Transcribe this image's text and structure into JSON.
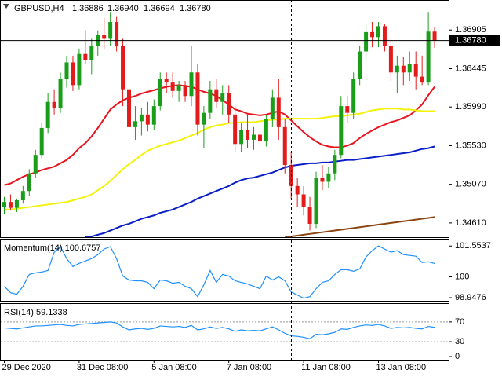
{
  "chart_data": [
    {
      "type": "candlestick",
      "title": "GBPUSD,H4",
      "ohlc_labels": [
        "1.36886",
        "1.36940",
        "1.36694",
        "1.36780"
      ],
      "categories": [
        "29 Dec 2020",
        null,
        null,
        null,
        null,
        null,
        null,
        null,
        null,
        null,
        null,
        null,
        "31 Dec 08:00",
        null,
        null,
        null,
        null,
        null,
        null,
        null,
        null,
        null,
        null,
        null,
        "5 Jan 08:00",
        null,
        null,
        null,
        null,
        null,
        null,
        null,
        null,
        null,
        null,
        null,
        "7 Jan 08:00",
        null,
        null,
        null,
        null,
        null,
        null,
        null,
        null,
        null,
        null,
        null,
        "11 Jan 08:00",
        null,
        null,
        null,
        null,
        null,
        null,
        null,
        null,
        null,
        null,
        null,
        "13 Jan 08:00",
        null,
        null,
        null,
        null,
        null,
        null,
        null,
        null,
        null
      ],
      "open": [
        1.348,
        1.3486,
        1.3479,
        1.3488,
        1.3499,
        1.352,
        1.3542,
        1.3574,
        1.3605,
        1.3598,
        1.3632,
        1.3652,
        1.3625,
        1.3662,
        1.3655,
        1.3672,
        1.3685,
        1.368,
        1.37,
        1.3672,
        1.362,
        1.3575,
        1.3582,
        1.359,
        1.3578,
        1.36,
        1.3632,
        1.3628,
        1.3618,
        1.3625,
        1.3612,
        1.364,
        1.3578,
        1.3592,
        1.362,
        1.3605,
        1.3615,
        1.359,
        1.3555,
        1.3572,
        1.356,
        1.3566,
        1.3558,
        1.3585,
        1.361,
        1.3575,
        1.353,
        1.3505,
        1.3495,
        1.348,
        1.346,
        1.3515,
        1.351,
        1.352,
        1.3542,
        1.36,
        1.3592,
        1.3632,
        1.3665,
        1.3688,
        1.3682,
        1.3695,
        1.3672,
        1.364,
        1.3648,
        1.364,
        1.365,
        1.3635,
        1.3628,
        1.36886
      ],
      "high": [
        1.3492,
        1.3495,
        1.349,
        1.3505,
        1.3525,
        1.3548,
        1.358,
        1.3615,
        1.362,
        1.364,
        1.366,
        1.366,
        1.3668,
        1.369,
        1.368,
        1.369,
        1.3705,
        1.3712,
        1.3706,
        1.368,
        1.363,
        1.36,
        1.3598,
        1.3605,
        1.3608,
        1.364,
        1.364,
        1.364,
        1.363,
        1.363,
        1.3672,
        1.365,
        1.36,
        1.363,
        1.3632,
        1.3625,
        1.3625,
        1.36,
        1.358,
        1.359,
        1.3575,
        1.3578,
        1.359,
        1.362,
        1.3632,
        1.3585,
        1.3545,
        1.3515,
        1.3505,
        1.3492,
        1.3522,
        1.353,
        1.3528,
        1.3548,
        1.3612,
        1.3612,
        1.364,
        1.3672,
        1.3698,
        1.37,
        1.37,
        1.3698,
        1.368,
        1.366,
        1.3658,
        1.3665,
        1.3665,
        1.366,
        1.3712,
        1.3694
      ],
      "low": [
        1.3472,
        1.3476,
        1.3474,
        1.3484,
        1.3493,
        1.3515,
        1.3538,
        1.3568,
        1.359,
        1.3592,
        1.3622,
        1.3618,
        1.362,
        1.365,
        1.3638,
        1.366,
        1.3668,
        1.3672,
        1.3665,
        1.36,
        1.3545,
        1.356,
        1.3565,
        1.357,
        1.3572,
        1.3595,
        1.3615,
        1.361,
        1.3605,
        1.3605,
        1.36,
        1.3565,
        1.355,
        1.3585,
        1.3598,
        1.359,
        1.358,
        1.3545,
        1.3545,
        1.355,
        1.3548,
        1.3552,
        1.3552,
        1.3575,
        1.356,
        1.352,
        1.349,
        1.348,
        1.347,
        1.3452,
        1.3455,
        1.35,
        1.3502,
        1.3512,
        1.3538,
        1.358,
        1.3585,
        1.3625,
        1.3655,
        1.367,
        1.367,
        1.3665,
        1.363,
        1.3615,
        1.3625,
        1.363,
        1.362,
        1.3625,
        1.3625,
        1.36694
      ],
      "close": [
        1.3486,
        1.3479,
        1.3488,
        1.3499,
        1.352,
        1.3542,
        1.3574,
        1.3605,
        1.3598,
        1.3632,
        1.3652,
        1.3625,
        1.3662,
        1.3655,
        1.3672,
        1.3685,
        1.368,
        1.37,
        1.3672,
        1.362,
        1.3575,
        1.3582,
        1.359,
        1.3578,
        1.36,
        1.3632,
        1.3628,
        1.3618,
        1.3625,
        1.3612,
        1.364,
        1.3578,
        1.3592,
        1.362,
        1.3605,
        1.3615,
        1.359,
        1.3555,
        1.3572,
        1.356,
        1.3566,
        1.3558,
        1.3585,
        1.361,
        1.3575,
        1.353,
        1.3505,
        1.3495,
        1.348,
        1.346,
        1.3515,
        1.351,
        1.352,
        1.3542,
        1.36,
        1.3592,
        1.3632,
        1.3665,
        1.3688,
        1.3682,
        1.3695,
        1.3672,
        1.364,
        1.3648,
        1.364,
        1.365,
        1.3635,
        1.3628,
        1.36886,
        1.3678
      ],
      "up_color": "#1a9e1a",
      "down_color": "#e41b1b",
      "series": [
        {
          "color": "#e8141e",
          "values": [
            1.3506,
            1.3508,
            1.3512,
            1.3516,
            1.3519,
            1.3521,
            1.3524,
            1.3526,
            1.3528,
            1.3532,
            1.3536,
            1.3542,
            1.355,
            1.3556,
            1.3564,
            1.3574,
            1.3585,
            1.3596,
            1.3602,
            1.3607,
            1.361,
            1.3612,
            1.3615,
            1.3617,
            1.3619,
            1.3621,
            1.3623,
            1.3624,
            1.3625,
            1.3624,
            1.3623,
            1.362,
            1.3617,
            1.3615,
            1.3612,
            1.3607,
            1.3602,
            1.3596,
            1.3594,
            1.3591,
            1.359,
            1.3589,
            1.359,
            1.3592,
            1.3594,
            1.359,
            1.3583,
            1.3576,
            1.3569,
            1.3563,
            1.3558,
            1.3554,
            1.3552,
            1.3551,
            1.3551,
            1.3553,
            1.3556,
            1.3562,
            1.3567,
            1.3571,
            1.3575,
            1.3578,
            1.3581,
            1.3583,
            1.3586,
            1.3589,
            1.3595,
            1.3602,
            1.3613,
            1.3623
          ]
        },
        {
          "color": "#f2f20a",
          "values": [
            1.3477,
            1.3477,
            1.3478,
            1.3479,
            1.348,
            1.3481,
            1.3482,
            1.3483,
            1.3484,
            1.3485,
            1.3486,
            1.3488,
            1.349,
            1.3492,
            1.3495,
            1.35,
            1.3505,
            1.3511,
            1.3518,
            1.3525,
            1.3531,
            1.3536,
            1.3542,
            1.3547,
            1.355,
            1.3553,
            1.3555,
            1.3557,
            1.3559,
            1.3562,
            1.3565,
            1.3568,
            1.3572,
            1.3575,
            1.3577,
            1.3578,
            1.358,
            1.358,
            1.3581,
            1.3581,
            1.3581,
            1.3582,
            1.3583,
            1.3584,
            1.3584,
            1.3585,
            1.3585,
            1.3585,
            1.3585,
            1.3585,
            1.3585,
            1.3586,
            1.3587,
            1.3588,
            1.3588,
            1.3589,
            1.359,
            1.3591,
            1.3593,
            1.3595,
            1.3596,
            1.3597,
            1.3597,
            1.3597,
            1.3596,
            1.3596,
            1.3595,
            1.3594,
            1.3594,
            1.3594
          ]
        },
        {
          "color": "#0a1ec8",
          "values": [
            null,
            null,
            null,
            null,
            null,
            null,
            null,
            null,
            null,
            null,
            null,
            null,
            null,
            1.3444,
            1.3445,
            1.3447,
            1.3449,
            1.3452,
            1.3455,
            1.3458,
            1.346,
            1.3463,
            1.3466,
            1.3468,
            1.347,
            1.3473,
            1.3475,
            1.3477,
            1.348,
            1.3483,
            1.3486,
            1.349,
            1.3493,
            1.3496,
            1.3499,
            1.3502,
            1.3505,
            1.3509,
            1.3512,
            1.3514,
            1.3515,
            1.3517,
            1.3519,
            1.3521,
            1.3524,
            1.3527,
            1.3529,
            1.353,
            1.3531,
            1.3532,
            1.3532,
            1.3533,
            1.3533,
            1.3534,
            1.3535,
            1.3536,
            1.3536,
            1.3537,
            1.3538,
            1.3539,
            1.354,
            1.3541,
            1.3542,
            1.3543,
            1.3544,
            1.3545,
            1.3547,
            1.3549,
            1.355,
            1.3552
          ]
        },
        {
          "color": "#8b4513",
          "values": [
            null,
            null,
            null,
            null,
            null,
            null,
            null,
            null,
            null,
            null,
            null,
            null,
            null,
            null,
            null,
            null,
            null,
            null,
            null,
            null,
            null,
            null,
            null,
            null,
            null,
            null,
            null,
            null,
            null,
            null,
            null,
            null,
            null,
            null,
            null,
            null,
            null,
            null,
            null,
            null,
            null,
            null,
            null,
            null,
            null,
            1.3444,
            1.3445,
            1.3446,
            1.3447,
            1.3448,
            1.3449,
            1.345,
            1.3451,
            1.3452,
            1.3453,
            1.3454,
            1.3455,
            1.3456,
            1.3457,
            1.3458,
            1.3459,
            1.346,
            1.3461,
            1.3462,
            1.3463,
            1.3464,
            1.3465,
            1.3466,
            1.3467,
            1.3468
          ]
        }
      ],
      "ylim": [
        1.34441,
        1.37262
      ],
      "yticks": [
        1.36905,
        1.36445,
        {
          "value": 1.3599,
          "label": "1.35990"
        },
        {
          "value": 1.3553,
          "label": "1.35530"
        },
        {
          "value": 1.3507,
          "label": "1.35070"
        },
        {
          "value": 1.3461,
          "label": "1.34610"
        }
      ],
      "current_price": {
        "value": 1.3678,
        "label": "1.36780"
      }
    },
    {
      "type": "line",
      "title": "Momentum(14) 100.6757",
      "color": "#1e90ff",
      "values": [
        99.52,
        99.2,
        99.12,
        99.52,
        100.12,
        100.2,
        100.24,
        100.32,
        101.24,
        101.52,
        100.92,
        100.52,
        100.68,
        100.8,
        100.92,
        101.12,
        101.4,
        101.52,
        100.92,
        100.04,
        99.84,
        99.8,
        99.8,
        99.72,
        99.4,
        99.84,
        99.8,
        99.68,
        99.72,
        99.52,
        99.4,
        99,
        99.6,
        100.32,
        99.72,
        100.12,
        100.04,
        99.8,
        99.72,
        99.64,
        99.52,
        99.4,
        100.04,
        99.84,
        100,
        99.8,
        99.24,
        99.08,
        98.92,
        99,
        99.4,
        99.72,
        99.8,
        100.12,
        100.36,
        100.36,
        100.28,
        100.4,
        101,
        101.32,
        101.56,
        101.4,
        101.24,
        101.32,
        101.12,
        101.08,
        101.04,
        100.72,
        100.76,
        100.6757
      ],
      "ylim": [
        98.79,
        101.92
      ],
      "yticks": [
        101.5537,
        100,
        98.9476
      ]
    },
    {
      "type": "line",
      "title": "RSI(14) 59.1338",
      "color": "#1e90ff",
      "values": [
        58,
        57,
        56,
        58,
        60,
        62,
        62,
        63,
        64,
        65,
        63,
        62,
        65,
        66,
        67,
        68,
        69,
        70,
        68,
        60,
        54,
        56,
        57,
        55,
        57,
        62,
        61,
        60,
        61,
        59,
        63,
        54,
        56,
        60,
        57,
        59,
        56,
        51,
        54,
        52,
        53,
        52,
        56,
        60,
        54,
        47,
        42,
        41,
        39,
        36,
        45,
        44,
        46,
        49,
        56,
        55,
        59,
        62,
        64,
        63,
        65,
        62,
        57,
        59,
        58,
        59,
        57,
        56,
        61,
        59.1338
      ],
      "ylim": [
        0,
        100
      ],
      "yticks": [
        70,
        30,
        0
      ],
      "grid": "dashed"
    }
  ]
}
